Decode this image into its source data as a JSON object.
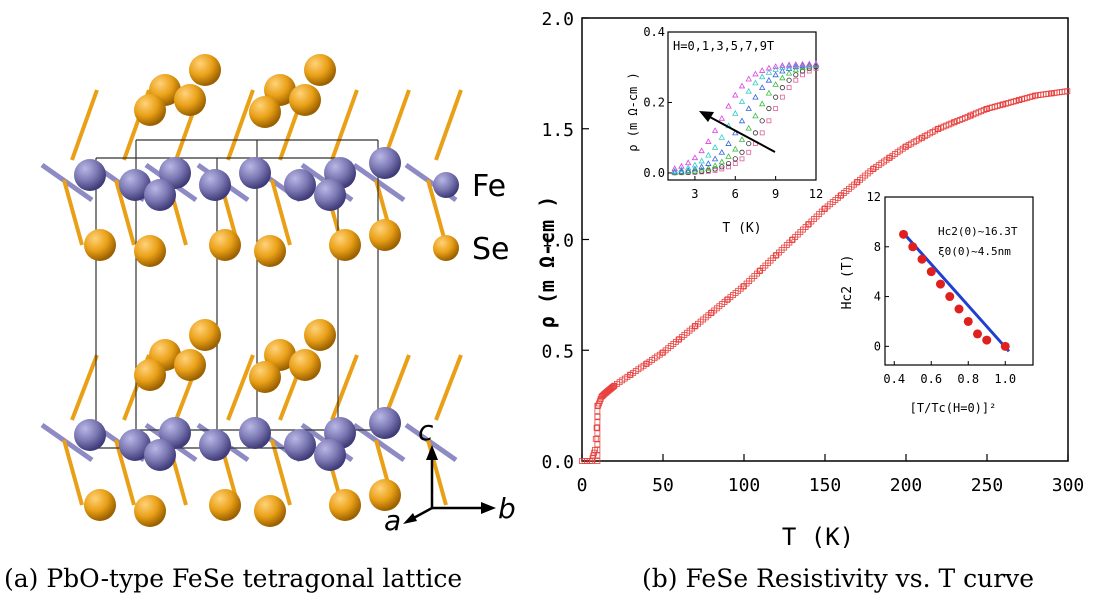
{
  "figure_a": {
    "caption": "(a) PbO-type FeSe tetragonal lattice",
    "legend": [
      {
        "label": "Fe",
        "color": "#7b78b3"
      },
      {
        "label": "Se",
        "color": "#e9a017"
      }
    ],
    "axes_labels": {
      "c": "c",
      "a": "a",
      "b": "b"
    }
  },
  "figure_b": {
    "caption": "(b) FeSe Resistivity vs. T curve"
  },
  "chart_data": [
    {
      "type": "scatter",
      "title": "",
      "xlabel": "T (K)",
      "ylabel": "ρ (m Ω-cm )",
      "xlim": [
        0,
        300
      ],
      "ylim": [
        0,
        2.0
      ],
      "xticks": [
        "0",
        "50",
        "100",
        "150",
        "200",
        "250",
        "300"
      ],
      "yticks": [
        "0.0",
        "0.5",
        "1.0",
        "1.5",
        "2.0"
      ],
      "marker_color": "#e8413e",
      "x": [
        0,
        6,
        8,
        9,
        10,
        12,
        15,
        20,
        30,
        40,
        50,
        60,
        70,
        80,
        90,
        100,
        110,
        120,
        130,
        140,
        150,
        160,
        170,
        180,
        190,
        200,
        210,
        220,
        230,
        240,
        250,
        260,
        270,
        280,
        290,
        300
      ],
      "y": [
        0.0,
        0.0,
        0.05,
        0.15,
        0.25,
        0.29,
        0.31,
        0.34,
        0.39,
        0.44,
        0.49,
        0.55,
        0.61,
        0.67,
        0.73,
        0.79,
        0.86,
        0.93,
        1.0,
        1.07,
        1.14,
        1.2,
        1.26,
        1.32,
        1.37,
        1.42,
        1.46,
        1.5,
        1.53,
        1.56,
        1.59,
        1.61,
        1.63,
        1.65,
        1.66,
        1.67
      ]
    },
    {
      "type": "scatter",
      "title": "H=0,1,3,5,7,9T",
      "xlabel": "T (K)",
      "ylabel": "ρ (m Ω-cm )",
      "xlim": [
        1,
        12
      ],
      "ylim": [
        -0.02,
        0.4
      ],
      "xticks": [
        "3",
        "6",
        "9",
        "12"
      ],
      "yticks": [
        "0.0",
        "0.2",
        "0.4"
      ],
      "rho_max": 0.31,
      "width": 1.1,
      "series": [
        {
          "color": "#e05c9b",
          "marker": "square",
          "midpoint": 8.6
        },
        {
          "color": "#303030",
          "marker": "circle",
          "midpoint": 8.1
        },
        {
          "color": "#3bbf3b",
          "marker": "triangle",
          "midpoint": 7.4
        },
        {
          "color": "#3366dd",
          "marker": "triangle",
          "midpoint": 6.6
        },
        {
          "color": "#33cccc",
          "marker": "triangle",
          "midpoint": 5.8
        },
        {
          "color": "#e040e0",
          "marker": "triangle",
          "midpoint": 5.0
        }
      ],
      "x_points": [
        1.5,
        2.0,
        2.5,
        3.0,
        3.5,
        4.0,
        4.5,
        5.0,
        5.5,
        6.0,
        6.5,
        7.0,
        7.5,
        8.0,
        8.5,
        9.0,
        9.5,
        10.0,
        10.5,
        11.0,
        11.5,
        12.0
      ]
    },
    {
      "type": "scatter",
      "title": "",
      "xlabel": "[T/Tc(H=0)]²",
      "ylabel": "Hc2 (T)",
      "xlim": [
        0.35,
        1.15
      ],
      "ylim": [
        -1.5,
        12
      ],
      "xticks": [
        "0.4",
        "0.6",
        "0.8",
        "1.0"
      ],
      "yticks": [
        "0",
        "4",
        "8",
        "12"
      ],
      "annotations": [
        "Hc2(0)~16.3T",
        "ξ0(0)~4.5nm"
      ],
      "points": {
        "x": [
          0.45,
          0.5,
          0.55,
          0.6,
          0.65,
          0.7,
          0.75,
          0.8,
          0.85,
          0.9,
          1.0
        ],
        "y": [
          9.0,
          8.0,
          7.0,
          6.0,
          5.0,
          4.0,
          3.0,
          2.0,
          1.0,
          0.5,
          0.0
        ]
      },
      "point_color": "#e0201e",
      "fit_line": {
        "x": [
          0.45,
          1.02
        ],
        "y": [
          9.1,
          -0.4
        ],
        "color": "#1f3fd0"
      }
    }
  ]
}
